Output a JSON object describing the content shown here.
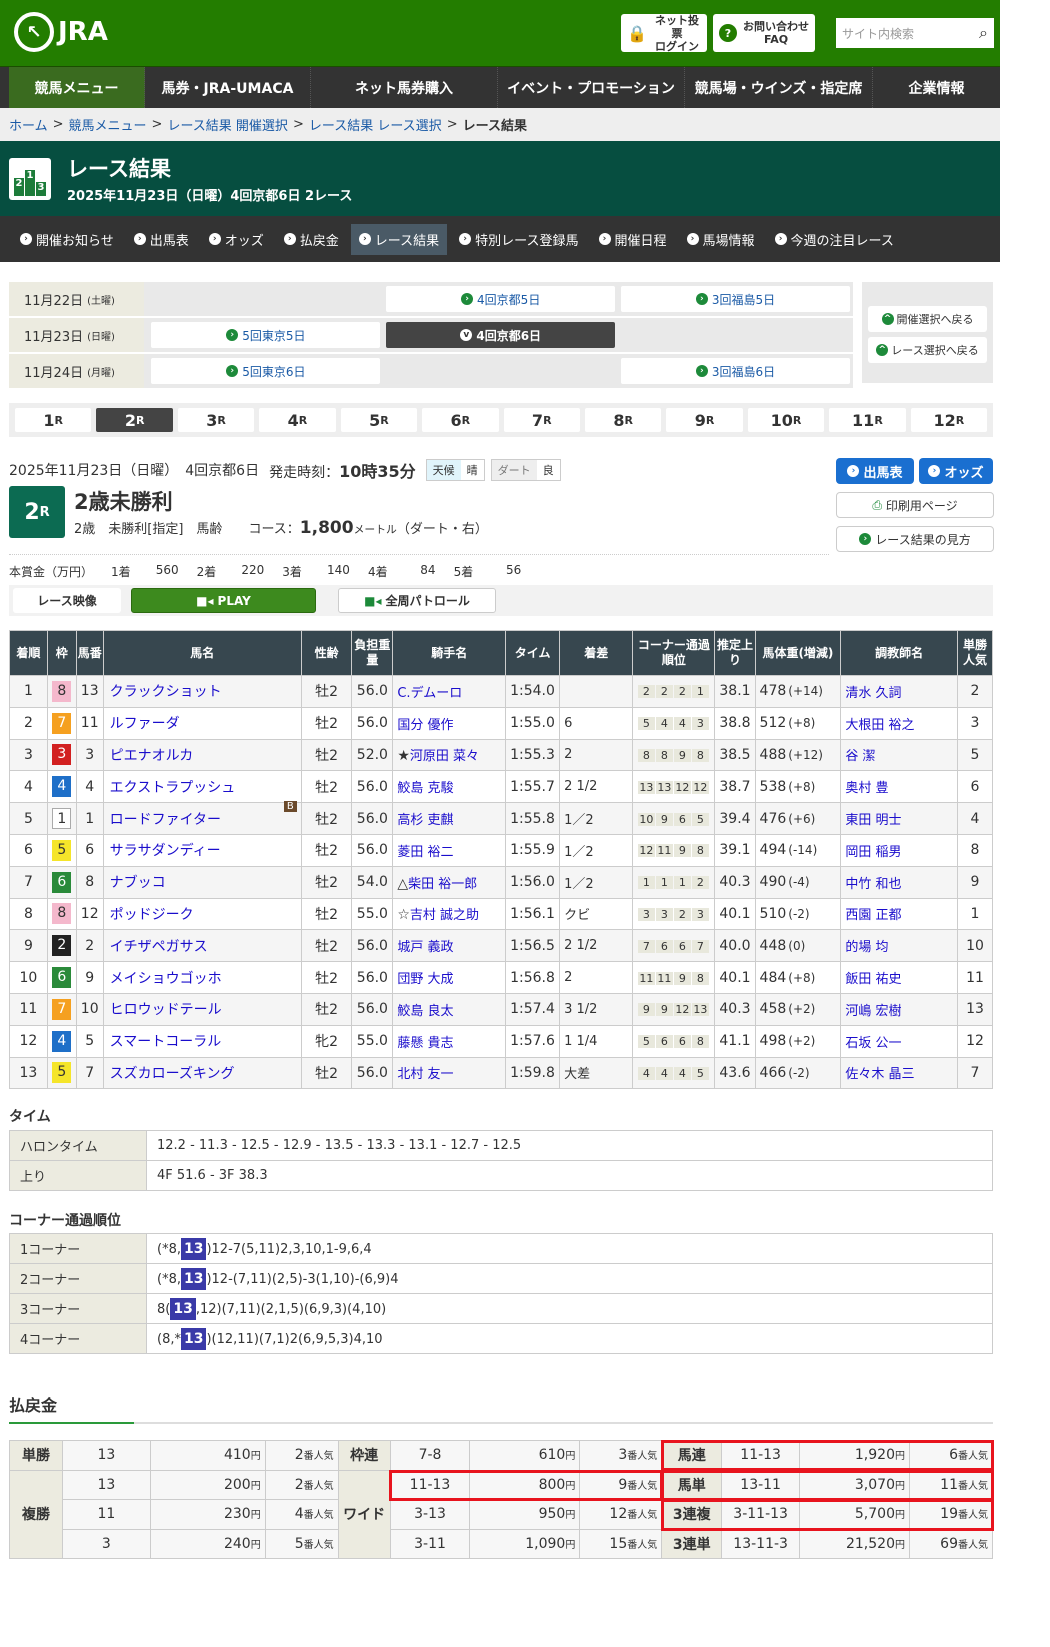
{
  "header": {
    "logo": "JRA",
    "login_line1": "ネット投票",
    "login_line2": "ログイン",
    "faq_line1": "お問い合わせ",
    "faq_line2": "FAQ",
    "search_placeholder": "サイト内検索"
  },
  "global_nav": [
    "競馬メニュー",
    "馬券・JRA-UMACA",
    "ネット馬券購入",
    "イベント・プロモーション",
    "競馬場・ウインズ・指定席",
    "企業情報"
  ],
  "breadcrumb": [
    "ホーム",
    "競馬メニュー",
    "レース結果 開催選択",
    "レース結果 レース選択",
    "レース結果"
  ],
  "page": {
    "title": "レース結果",
    "subtitle": "2025年11月23日（日曜）4回京都6日 2レース"
  },
  "sub_nav": [
    "開催お知らせ",
    "出馬表",
    "オッズ",
    "払戻金",
    "レース結果",
    "特別レース登録馬",
    "開催日程",
    "馬場情報",
    "今週の注目レース"
  ],
  "kaisai": [
    {
      "date": "11月22日",
      "dow": "(土曜)",
      "venues": [
        "",
        "4回京都5日",
        "3回福島5日"
      ]
    },
    {
      "date": "11月23日",
      "dow": "(日曜)",
      "venues": [
        "5回東京5日",
        "4回京都6日",
        ""
      ]
    },
    {
      "date": "11月24日",
      "dow": "(月曜)",
      "venues": [
        "5回東京6日",
        "",
        "3回福島6日"
      ]
    }
  ],
  "kaisai_back": [
    "開催選択へ戻る",
    "レース選択へ戻る"
  ],
  "race_tabs": [
    "1",
    "2",
    "3",
    "4",
    "5",
    "6",
    "7",
    "8",
    "9",
    "10",
    "11",
    "12"
  ],
  "race_tab_suffix": "R",
  "race": {
    "date_place": "2025年11月23日（日曜）　4回京都6日",
    "start_label": "発走時刻：",
    "start_time": "10時35分",
    "weather_label": "天候",
    "weather": "晴",
    "track_label": "ダート",
    "track": "良",
    "number": "2",
    "name": "2歳未勝利",
    "conditions": "2歳　未勝利[指定]　馬齢",
    "course_label": "コース：",
    "distance": "1,800",
    "distance_unit": "メートル",
    "course_detail": "（ダート・右）",
    "prize_label": "本賞金（万円）",
    "prizes": [
      [
        "1着",
        "560"
      ],
      [
        "2着",
        "220"
      ],
      [
        "3着",
        "140"
      ],
      [
        "4着",
        "84"
      ],
      [
        "5着",
        "56"
      ]
    ]
  },
  "race_buttons": {
    "entries": "出馬表",
    "odds": "オッズ",
    "print": "印刷用ページ",
    "guide": "レース結果の見方"
  },
  "video": {
    "label": "レース映像",
    "play": "PLAY",
    "patrol": "全周パトロール"
  },
  "frame_colors": {
    "1": "#ffffff",
    "2": "#222222",
    "3": "#d22020",
    "4": "#1e6fc8",
    "5": "#f5e52a",
    "6": "#2a8a3a",
    "7": "#f5a020",
    "8": "#f4b8cc"
  },
  "results_headers": [
    "着順",
    "枠",
    "馬番",
    "馬名",
    "性齢",
    "負担重量",
    "騎手名",
    "タイム",
    "着差",
    "コーナー通過順位",
    "推定上り",
    "馬体重(増減)",
    "調教師名",
    "単勝人気"
  ],
  "results": [
    {
      "pos": "1",
      "waku": "8",
      "num": "13",
      "horse": "クラックショット",
      "sex": "牡2",
      "wt": "56.0",
      "jockey": "C.デムーロ",
      "mark": "",
      "time": "1:54.0",
      "margin": "",
      "corners": [
        "2",
        "2",
        "2",
        "1"
      ],
      "last3f": "38.1",
      "bw": "478",
      "diff": "(+14)",
      "trainer": "清水 久詞",
      "pop": "2"
    },
    {
      "pos": "2",
      "waku": "7",
      "num": "11",
      "horse": "ルファーダ",
      "sex": "牡2",
      "wt": "56.0",
      "jockey": "国分 優作",
      "mark": "",
      "time": "1:55.0",
      "margin": "6",
      "corners": [
        "5",
        "4",
        "4",
        "3"
      ],
      "last3f": "38.8",
      "bw": "512",
      "diff": "(+8)",
      "trainer": "大根田 裕之",
      "pop": "3"
    },
    {
      "pos": "3",
      "waku": "3",
      "num": "3",
      "horse": "ピエナオルカ",
      "sex": "牡2",
      "wt": "52.0",
      "jockey": "河原田 菜々",
      "mark": "★",
      "time": "1:55.3",
      "margin": "2",
      "corners": [
        "8",
        "8",
        "9",
        "8"
      ],
      "last3f": "38.5",
      "bw": "488",
      "diff": "(+12)",
      "trainer": "谷 潔",
      "pop": "5"
    },
    {
      "pos": "4",
      "waku": "4",
      "num": "4",
      "horse": "エクストラプッシュ",
      "sex": "牡2",
      "wt": "56.0",
      "jockey": "鮫島 克駿",
      "mark": "",
      "time": "1:55.7",
      "margin": "2 1/2",
      "corners": [
        "13",
        "13",
        "12",
        "12"
      ],
      "last3f": "38.7",
      "bw": "538",
      "diff": "(+8)",
      "trainer": "奥村 豊",
      "pop": "6"
    },
    {
      "pos": "5",
      "waku": "1",
      "num": "1",
      "horse": "ロードファイター",
      "blinker": "B",
      "sex": "牡2",
      "wt": "56.0",
      "jockey": "高杉 吏麒",
      "mark": "",
      "time": "1:55.8",
      "margin": "1／2",
      "corners": [
        "10",
        "9",
        "6",
        "5"
      ],
      "last3f": "39.4",
      "bw": "476",
      "diff": "(+6)",
      "trainer": "東田 明士",
      "pop": "4"
    },
    {
      "pos": "6",
      "waku": "5",
      "num": "6",
      "horse": "サラサダンディー",
      "sex": "牡2",
      "wt": "56.0",
      "jockey": "菱田 裕二",
      "mark": "",
      "time": "1:55.9",
      "margin": "1／2",
      "corners": [
        "12",
        "11",
        "9",
        "8"
      ],
      "last3f": "39.1",
      "bw": "494",
      "diff": "(-14)",
      "trainer": "岡田 稲男",
      "pop": "8"
    },
    {
      "pos": "7",
      "waku": "6",
      "num": "8",
      "horse": "ナブッコ",
      "sex": "牡2",
      "wt": "54.0",
      "jockey": "柴田 裕一郎",
      "mark": "△",
      "time": "1:56.0",
      "margin": "1／2",
      "corners": [
        "1",
        "1",
        "1",
        "2"
      ],
      "last3f": "40.3",
      "bw": "490",
      "diff": "(-4)",
      "trainer": "中竹 和也",
      "pop": "9"
    },
    {
      "pos": "8",
      "waku": "8",
      "num": "12",
      "horse": "ポッドジーク",
      "sex": "牡2",
      "wt": "55.0",
      "jockey": "吉村 誠之助",
      "mark": "☆",
      "time": "1:56.1",
      "margin": "クビ",
      "corners": [
        "3",
        "3",
        "2",
        "3"
      ],
      "last3f": "40.1",
      "bw": "510",
      "diff": "(-2)",
      "trainer": "西園 正都",
      "pop": "1"
    },
    {
      "pos": "9",
      "waku": "2",
      "num": "2",
      "horse": "イチザペガサス",
      "sex": "牡2",
      "wt": "56.0",
      "jockey": "城戸 義政",
      "mark": "",
      "time": "1:56.5",
      "margin": "2 1/2",
      "corners": [
        "7",
        "6",
        "6",
        "7"
      ],
      "last3f": "40.0",
      "bw": "448",
      "diff": "(0)",
      "trainer": "的場 均",
      "pop": "10"
    },
    {
      "pos": "10",
      "waku": "6",
      "num": "9",
      "horse": "メイショウゴッホ",
      "sex": "牡2",
      "wt": "56.0",
      "jockey": "団野 大成",
      "mark": "",
      "time": "1:56.8",
      "margin": "2",
      "corners": [
        "11",
        "11",
        "9",
        "8"
      ],
      "last3f": "40.1",
      "bw": "484",
      "diff": "(+8)",
      "trainer": "飯田 祐史",
      "pop": "11"
    },
    {
      "pos": "11",
      "waku": "7",
      "num": "10",
      "horse": "ヒロウッドテール",
      "sex": "牡2",
      "wt": "56.0",
      "jockey": "鮫島 良太",
      "mark": "",
      "time": "1:57.4",
      "margin": "3 1/2",
      "corners": [
        "9",
        "9",
        "12",
        "13"
      ],
      "last3f": "40.3",
      "bw": "458",
      "diff": "(+2)",
      "trainer": "河嶋 宏樹",
      "pop": "13"
    },
    {
      "pos": "12",
      "waku": "4",
      "num": "5",
      "horse": "スマートコーラル",
      "sex": "牝2",
      "wt": "55.0",
      "jockey": "藤懸 貴志",
      "mark": "",
      "time": "1:57.6",
      "margin": "1 1/4",
      "corners": [
        "5",
        "6",
        "6",
        "8"
      ],
      "last3f": "41.1",
      "bw": "498",
      "diff": "(+2)",
      "trainer": "石坂 公一",
      "pop": "12"
    },
    {
      "pos": "13",
      "waku": "5",
      "num": "7",
      "horse": "スズカローズキング",
      "sex": "牡2",
      "wt": "56.0",
      "jockey": "北村 友一",
      "mark": "",
      "time": "1:59.8",
      "margin": "大差",
      "corners": [
        "4",
        "4",
        "4",
        "5"
      ],
      "last3f": "43.6",
      "bw": "466",
      "diff": "(-2)",
      "trainer": "佐々木 晶三",
      "pop": "7"
    }
  ],
  "times": {
    "title": "タイム",
    "rows": [
      [
        "ハロンタイム",
        "12.2 - 11.3 - 12.5 - 12.9 - 13.5 - 13.3 - 13.1 - 12.7 - 12.5"
      ],
      [
        "上り",
        "4F 51.6 - 3F 38.3"
      ]
    ]
  },
  "corners": {
    "title": "コーナー通過順位",
    "rows": [
      {
        "label": "1コーナー",
        "pre": "(*8,",
        "hl": "13",
        "post": ")12-7(5,11)2,3,10,1-9,6,4"
      },
      {
        "label": "2コーナー",
        "pre": "(*8,",
        "hl": "13",
        "post": ")12-(7,11)(2,5)-3(1,10)-(6,9)4"
      },
      {
        "label": "3コーナー",
        "pre": "8(",
        "hl": "13",
        "post": ",12)(7,11)(2,1,5)(6,9,3)(4,10)"
      },
      {
        "label": "4コーナー",
        "pre": "(8,*",
        "hl": "13",
        "post": ")(12,11)(7,1)2(6,9,5,3)4,10"
      }
    ]
  },
  "payout": {
    "title": "払戻金",
    "yen": "円",
    "pop_suffix": "番人気",
    "tansho": {
      "label": "単勝",
      "rows": [
        [
          "13",
          "410",
          "2"
        ]
      ]
    },
    "fukusho": {
      "label": "複勝",
      "rows": [
        [
          "13",
          "200",
          "2"
        ],
        [
          "11",
          "230",
          "4"
        ],
        [
          "3",
          "240",
          "5"
        ]
      ]
    },
    "wakuren": {
      "label": "枠連",
      "rows": [
        [
          "7-8",
          "610",
          "3"
        ]
      ]
    },
    "wide": {
      "label": "ワイド",
      "rows": [
        [
          "11-13",
          "800",
          "9"
        ],
        [
          "3-13",
          "950",
          "12"
        ],
        [
          "3-11",
          "1,090",
          "15"
        ]
      ]
    },
    "umaren": {
      "label": "馬連",
      "rows": [
        [
          "11-13",
          "1,920",
          "6"
        ]
      ]
    },
    "umatan": {
      "label": "馬単",
      "rows": [
        [
          "13-11",
          "3,070",
          "11"
        ]
      ]
    },
    "sanrenpuku": {
      "label": "3連複",
      "rows": [
        [
          "3-11-13",
          "5,700",
          "19"
        ]
      ]
    },
    "sanrentan": {
      "label": "3連単",
      "rows": [
        [
          "13-11-3",
          "21,520",
          "69"
        ]
      ]
    }
  },
  "highlight_color": "#e8141e"
}
